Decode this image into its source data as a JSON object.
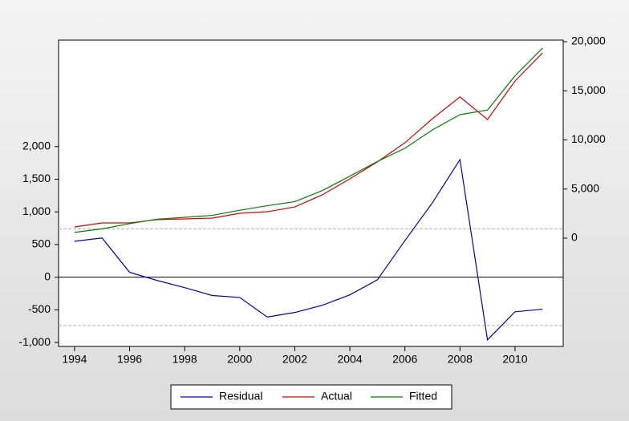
{
  "chart_data": {
    "type": "line",
    "x": [
      1994,
      1995,
      1996,
      1997,
      1998,
      1999,
      2000,
      2001,
      2002,
      2003,
      2004,
      2005,
      2006,
      2007,
      2008,
      2009,
      2010,
      2011
    ],
    "series": [
      {
        "name": "Residual",
        "color": "#0000c0",
        "axis": "y",
        "values": [
          550,
          600,
          75,
          -50,
          -160,
          -280,
          -310,
          -610,
          -540,
          -430,
          -270,
          -40,
          560,
          1140,
          1800,
          -960,
          -530,
          -490
        ]
      },
      {
        "name": "Actual",
        "color": "#e00000",
        "axis": "y2",
        "values": [
          1140,
          1550,
          1550,
          1880,
          1960,
          2040,
          2530,
          2690,
          3180,
          4410,
          6040,
          7760,
          9710,
          12160,
          14370,
          12080,
          16000,
          18860
        ]
      },
      {
        "name": "Fitted",
        "color": "#008000",
        "axis": "y2",
        "values": [
          590,
          950,
          1475,
          1930,
          2120,
          2320,
          2840,
          3300,
          3720,
          4840,
          6310,
          7800,
          9150,
          11020,
          12570,
          13040,
          16530,
          19350
        ]
      }
    ],
    "reference_lines": [
      740,
      -740
    ],
    "xlim": [
      1993.42,
      2011.75
    ],
    "xticks": [
      1994,
      1996,
      1998,
      2000,
      2002,
      2004,
      2006,
      2008,
      2010
    ],
    "ylim": [
      -1060,
      3630
    ],
    "yticks": [
      {
        "value": -1000,
        "label": "-1,000"
      },
      -500,
      0,
      500,
      {
        "value": 1000,
        "label": "1,000"
      },
      {
        "value": 1500,
        "label": "1,500"
      },
      {
        "value": 2000,
        "label": "2,000"
      }
    ],
    "y2lim": [
      -11020,
      20160
    ],
    "y2ticks": [
      0,
      {
        "value": 5000,
        "label": "5,000"
      },
      {
        "value": 10000,
        "label": "10,000"
      },
      {
        "value": 15000,
        "label": "15,000"
      },
      {
        "value": 20000,
        "label": "20,000"
      }
    ],
    "legend": "bottom"
  }
}
